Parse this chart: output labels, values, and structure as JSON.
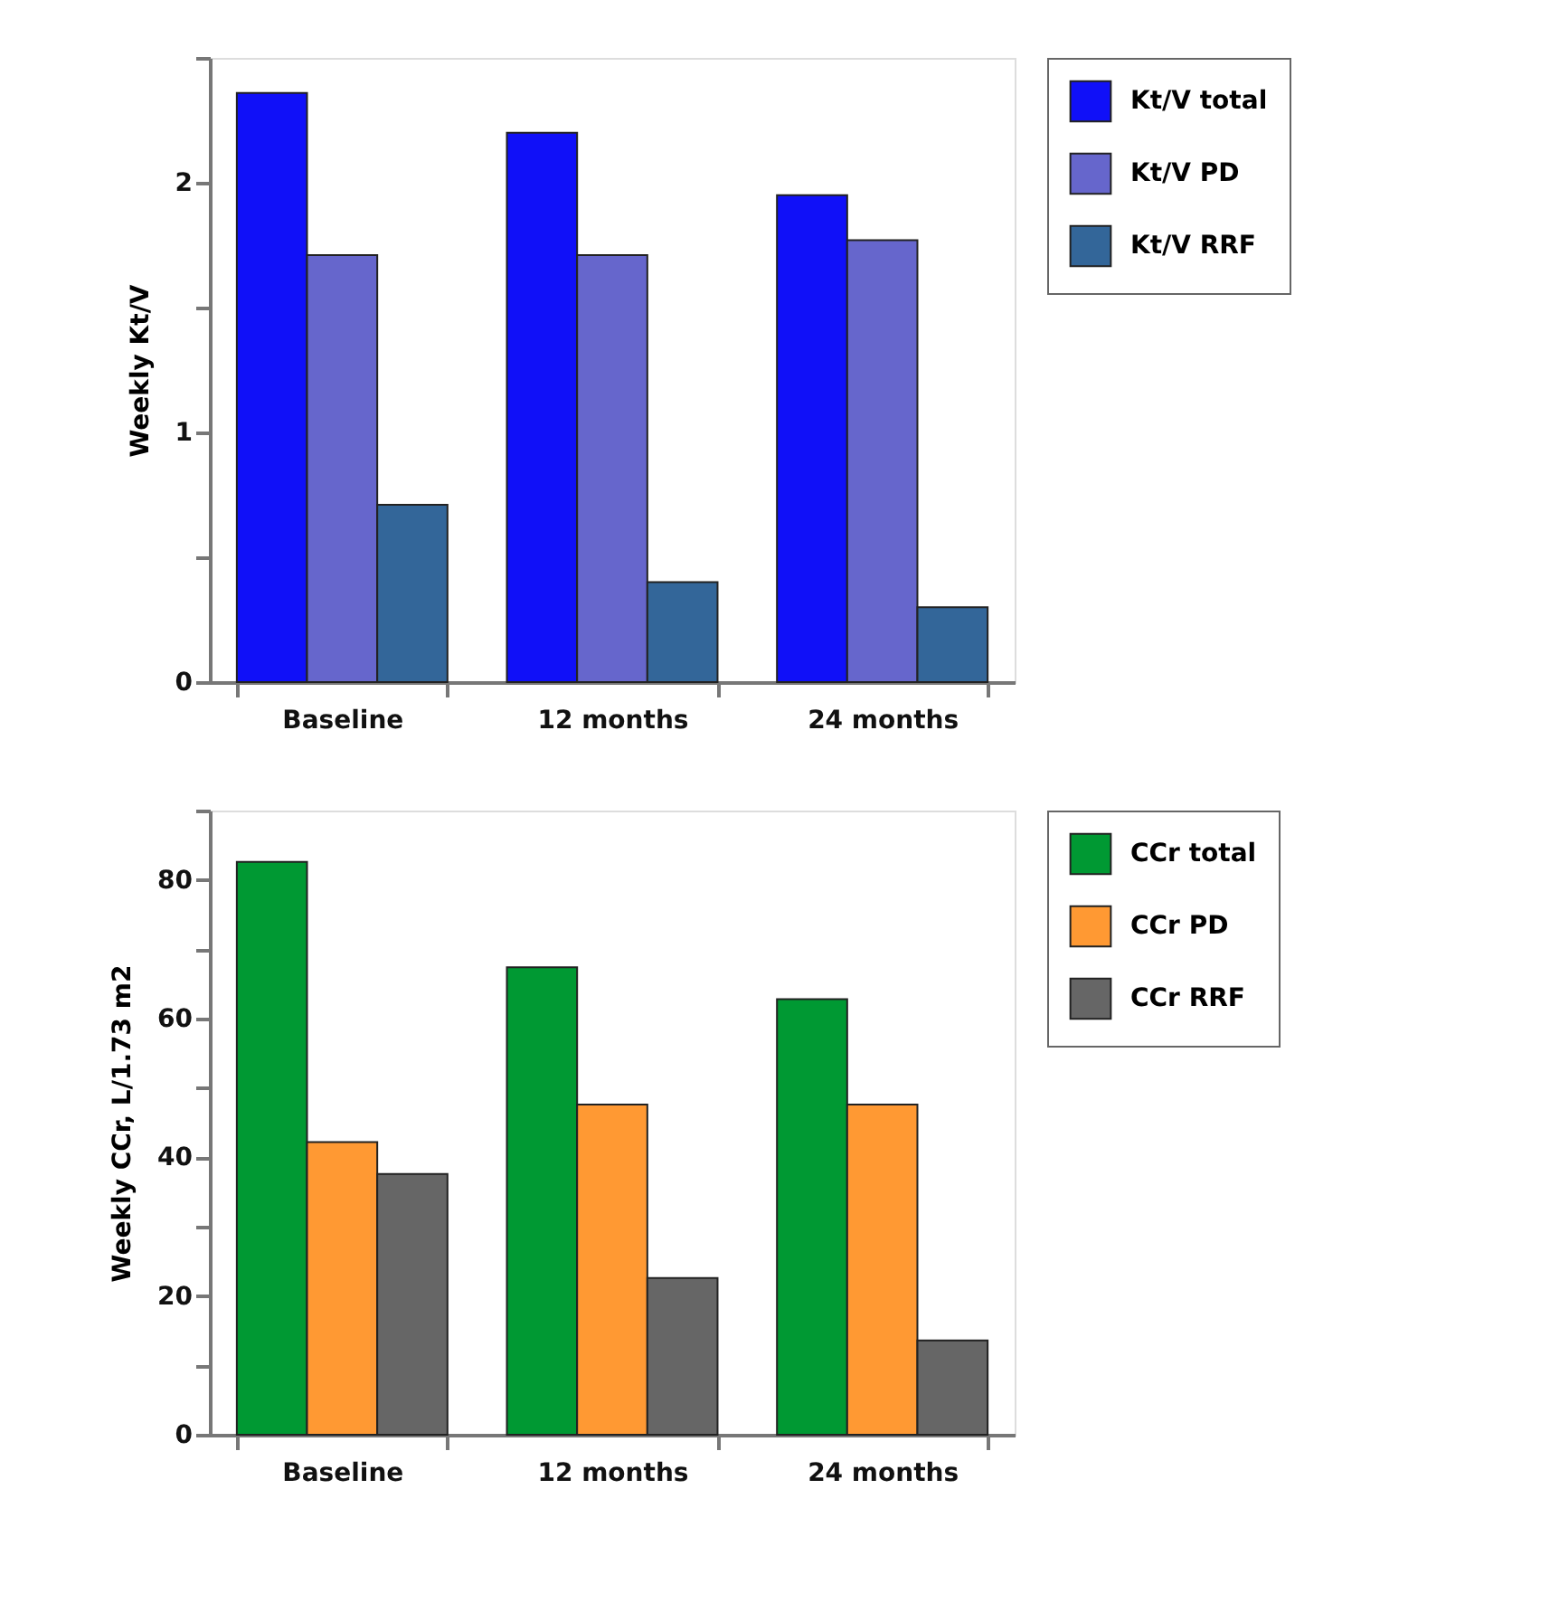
{
  "chart_data": [
    {
      "type": "bar",
      "ylabel": "Weekly Kt/V",
      "categories": [
        "Baseline",
        "12 months",
        "24 months"
      ],
      "ylim": [
        0,
        2.5
      ],
      "yticks": [
        0,
        {
          "value": 0.5,
          "label": null
        },
        1,
        {
          "value": 1.5,
          "label": null
        },
        2,
        {
          "value": 2.5,
          "label": null
        }
      ],
      "legend": "right",
      "grid": false,
      "series": [
        {
          "name": "Kt/V total",
          "color": "#1010f8",
          "values": [
            2.36,
            2.2,
            1.95
          ]
        },
        {
          "name": "Kt/V PD",
          "color": "#6666cc",
          "values": [
            1.71,
            1.71,
            1.77
          ]
        },
        {
          "name": "Kt/V RRF",
          "color": "#336699",
          "values": [
            0.71,
            0.4,
            0.3
          ]
        }
      ]
    },
    {
      "type": "bar",
      "ylabel": "Weekly CCr, L/1.73 m2",
      "categories": [
        "Baseline",
        "12 months",
        "24 months"
      ],
      "ylim": [
        0,
        90
      ],
      "yticks": [
        0,
        {
          "value": 10,
          "label": null
        },
        20,
        {
          "value": 30,
          "label": null
        },
        40,
        {
          "value": 50,
          "label": null
        },
        60,
        {
          "value": 70,
          "label": null
        },
        80,
        {
          "value": 90,
          "label": null
        }
      ],
      "legend": "right",
      "grid": false,
      "series": [
        {
          "name": "CCr total",
          "color": "#009933",
          "values": [
            82.6,
            67.4,
            62.8
          ]
        },
        {
          "name": "CCr PD",
          "color": "#ff9933",
          "values": [
            42.2,
            47.6,
            47.6
          ]
        },
        {
          "name": "CCr RRF",
          "color": "#666666",
          "values": [
            37.6,
            22.6,
            13.6
          ]
        }
      ]
    }
  ]
}
